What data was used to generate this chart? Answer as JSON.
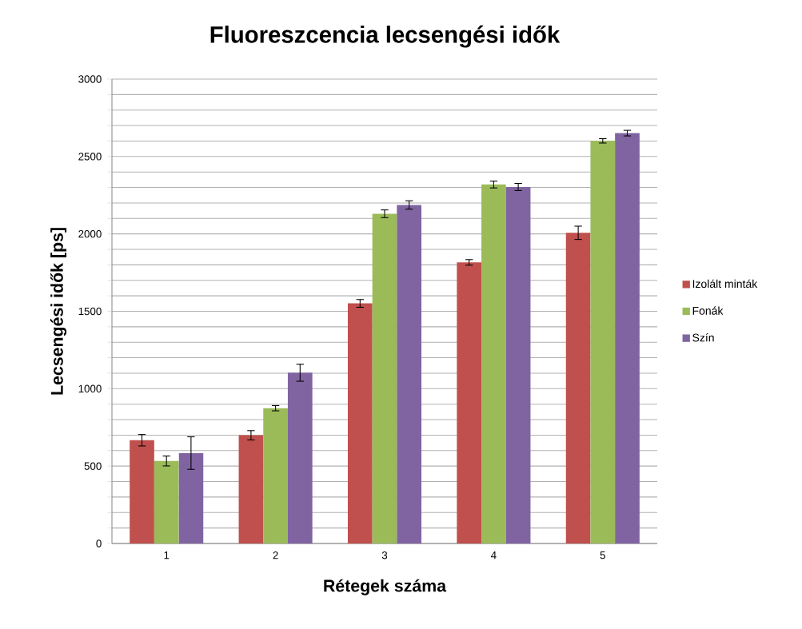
{
  "chart_data": {
    "type": "bar",
    "title": "Fluoreszcencia lecsengési idők",
    "xlabel": "Rétegek száma",
    "ylabel": "Lecsengési idők [ps]",
    "categories": [
      "1",
      "2",
      "3",
      "4",
      "5"
    ],
    "series": [
      {
        "name": "Izolált minták",
        "color": "#c0504d",
        "values": [
          667,
          699,
          1551,
          1816,
          2007
        ],
        "errors": [
          37,
          30,
          25,
          18,
          43
        ]
      },
      {
        "name": "Fonák",
        "color": "#9bbb59",
        "values": [
          533,
          874,
          2130,
          2319,
          2601
        ],
        "errors": [
          32,
          17,
          25,
          22,
          14
        ]
      },
      {
        "name": "Szín",
        "color": "#8064a2",
        "values": [
          584,
          1103,
          2187,
          2303,
          2651
        ],
        "errors": [
          105,
          55,
          27,
          23,
          18
        ]
      }
    ],
    "ylim": [
      0,
      3000
    ],
    "yticks": [
      0,
      {
        "value": 100,
        "label": null
      },
      {
        "value": 200,
        "label": null
      },
      {
        "value": 300,
        "label": null
      },
      {
        "value": 400,
        "label": null
      },
      500,
      {
        "value": 600,
        "label": null
      },
      {
        "value": 700,
        "label": null
      },
      {
        "value": 800,
        "label": null
      },
      {
        "value": 900,
        "label": null
      },
      1000,
      {
        "value": 1100,
        "label": null
      },
      {
        "value": 1200,
        "label": null
      },
      {
        "value": 1300,
        "label": null
      },
      {
        "value": 1400,
        "label": null
      },
      1500,
      {
        "value": 1600,
        "label": null
      },
      {
        "value": 1700,
        "label": null
      },
      {
        "value": 1800,
        "label": null
      },
      {
        "value": 1900,
        "label": null
      },
      2000,
      {
        "value": 2100,
        "label": null
      },
      {
        "value": 2200,
        "label": null
      },
      {
        "value": 2300,
        "label": null
      },
      {
        "value": 2400,
        "label": null
      },
      2500,
      {
        "value": 2600,
        "label": null
      },
      {
        "value": 2700,
        "label": null
      },
      {
        "value": 2800,
        "label": null
      },
      {
        "value": 2900,
        "label": null
      },
      3000
    ],
    "grid": "y",
    "legend": "right"
  }
}
